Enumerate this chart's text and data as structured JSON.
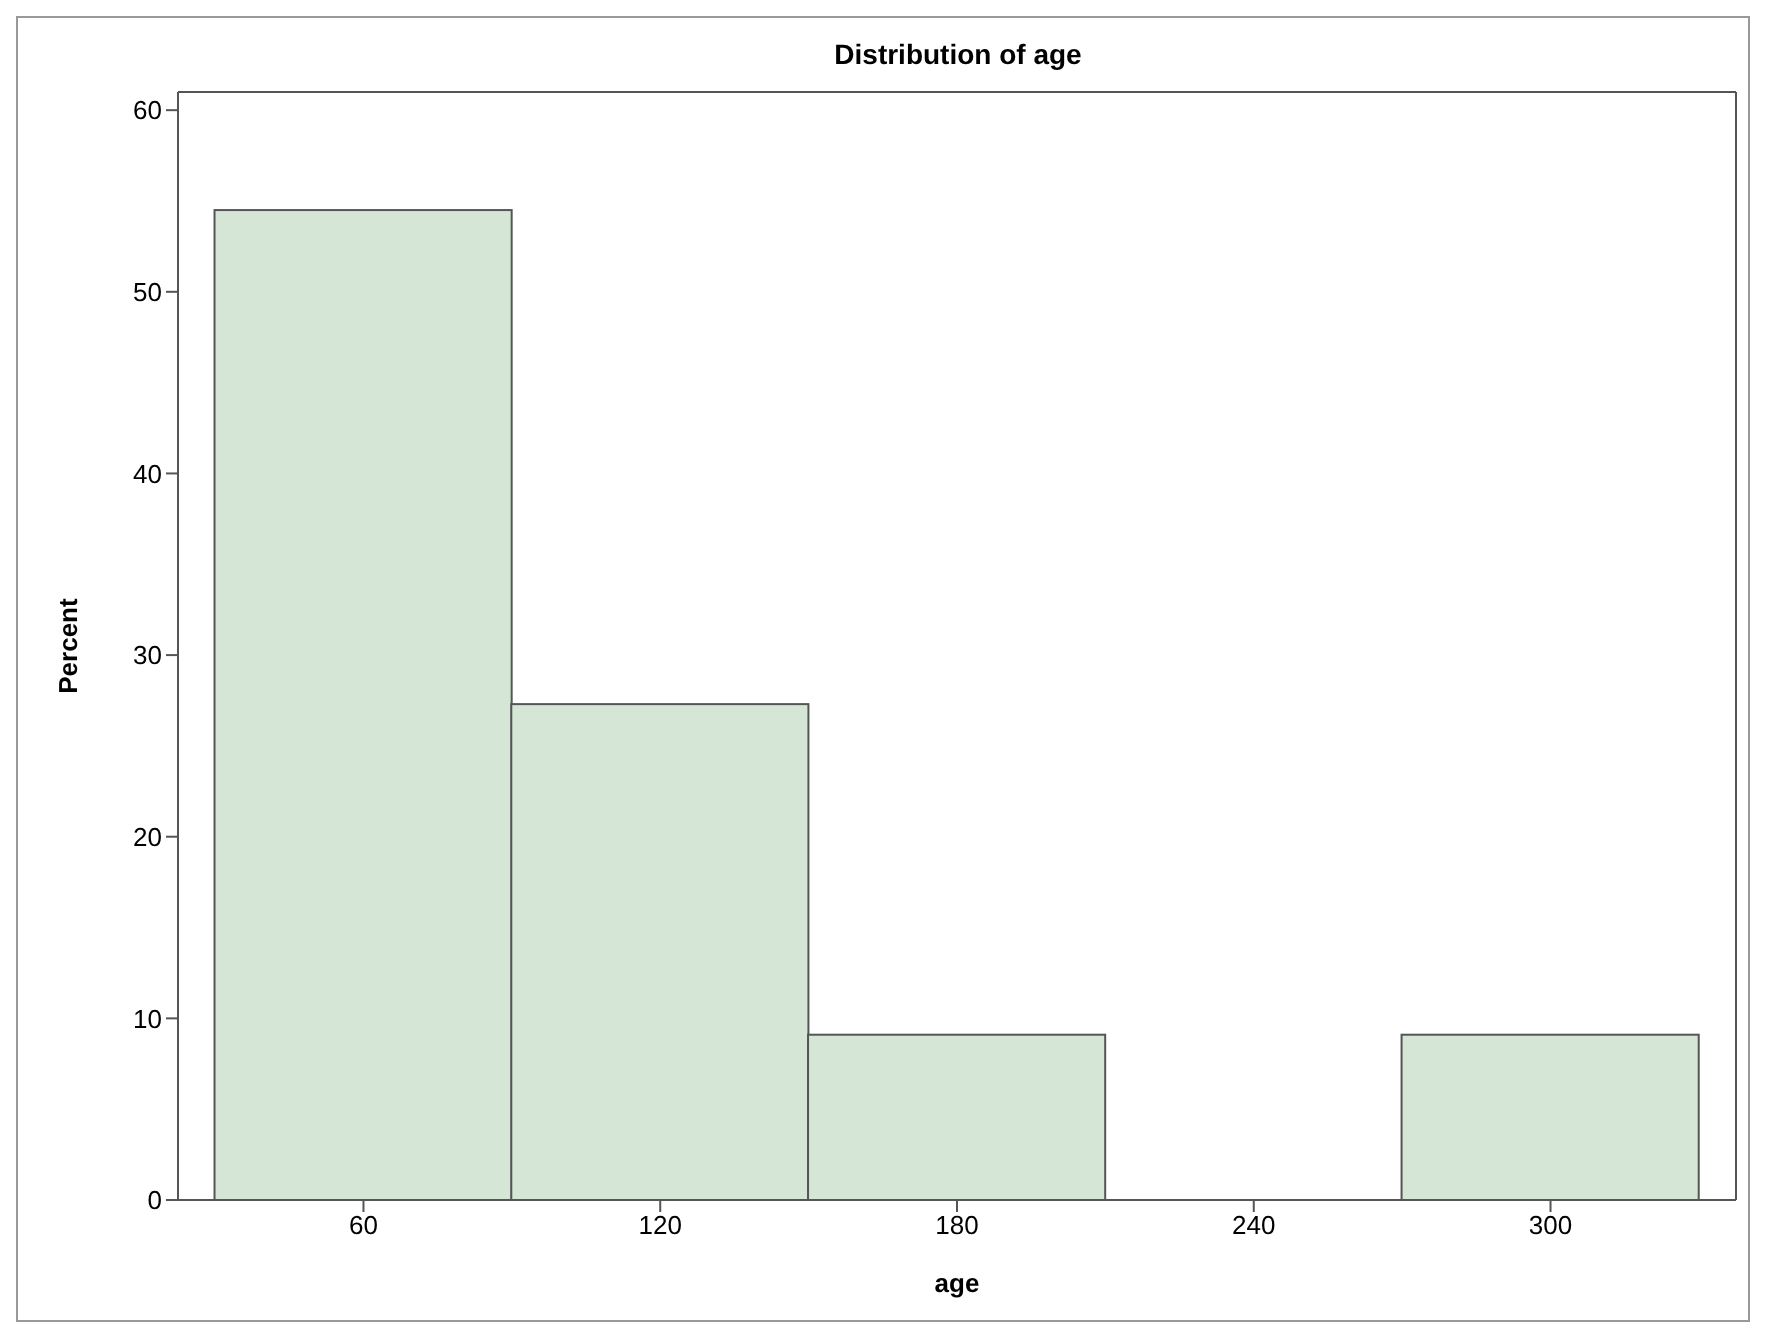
{
  "chart_data": {
    "type": "histogram",
    "title": "Distribution of age",
    "xlabel": "age",
    "ylabel": "Percent",
    "bins": [
      30,
      90,
      150,
      210,
      270,
      330
    ],
    "values": [
      54.5,
      27.3,
      9.1,
      0,
      9.1
    ],
    "color": "#d6e6d6",
    "xlim": [
      22.5,
      337.5
    ],
    "ylim": [
      0,
      61
    ],
    "xticks": [
      60,
      120,
      180,
      240,
      300
    ],
    "yticks": [
      0,
      10,
      20,
      30,
      40,
      50,
      60
    ]
  }
}
